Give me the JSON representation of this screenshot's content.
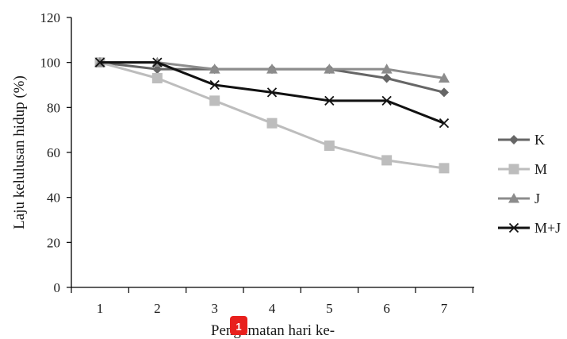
{
  "chart_data": {
    "type": "line",
    "x": [
      1,
      2,
      3,
      4,
      5,
      6,
      7
    ],
    "xlabel": "Pengamatan hari ke-",
    "ylabel": "Laju kelulusan hidup (%)",
    "ylim": [
      0,
      120
    ],
    "yticks": [
      0,
      20,
      40,
      60,
      80,
      100,
      120
    ],
    "grid": false,
    "legend_position": "right",
    "series": [
      {
        "name": "K",
        "values": [
          100,
          97,
          97,
          97,
          97,
          93,
          86.7
        ],
        "color": "#666666",
        "marker": "diamond"
      },
      {
        "name": "M",
        "values": [
          100,
          93,
          83,
          73,
          63,
          56.5,
          53
        ],
        "color": "#bdbdbd",
        "marker": "square"
      },
      {
        "name": "J",
        "values": [
          100,
          100,
          97,
          97,
          97,
          97,
          93
        ],
        "color": "#8c8c8c",
        "marker": "triangle"
      },
      {
        "name": "M+J",
        "values": [
          100,
          100,
          90,
          86.7,
          83,
          83,
          73
        ],
        "color": "#111111",
        "marker": "x"
      }
    ]
  },
  "badge": {
    "text": "1",
    "color": "#e8201d"
  }
}
